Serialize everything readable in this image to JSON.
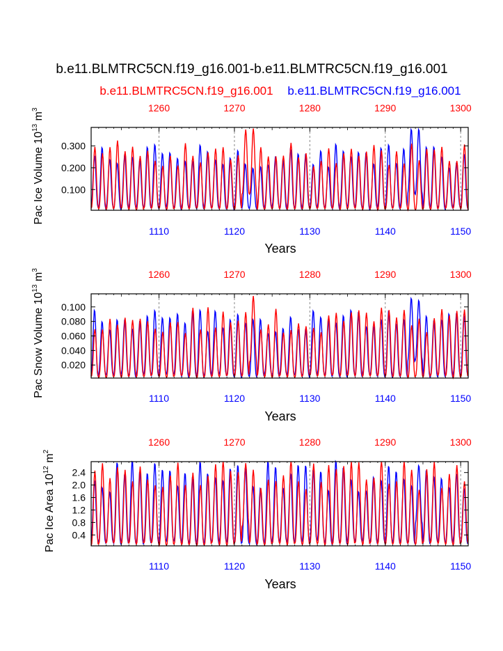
{
  "figure": {
    "title": "b.e11.BLMTRC5CN.f19_g16.001-b.e11.BLMTRC5CN.f19_g16.001",
    "case_red": "b.e11.BLMTRC5CN.f19_g16.001",
    "case_blue": "b.e11.BLMTRC5CN.f19_g16.001"
  },
  "colors": {
    "red": "#ff0000",
    "blue": "#0000ff",
    "axis": "#000000",
    "grid": "#888888"
  },
  "chart_data": [
    {
      "type": "line",
      "ylabel_main": "Pac Ice Volume 10",
      "ylabel_sup": "13",
      "ylabel_unit": " m",
      "ylabel_unit_sup": "3",
      "xlabel": "Years",
      "xlim_bottom": [
        1101,
        1151
      ],
      "xlim_top": [
        1251,
        1301
      ],
      "ylim": [
        0.005,
        0.385
      ],
      "yticks": [
        0.1,
        0.2,
        0.3
      ],
      "ytick_labels": [
        "0.100",
        "0.200",
        "0.300"
      ],
      "xticks_bottom": [
        "1110",
        "1120",
        "1130",
        "1140",
        "1150"
      ],
      "xticks_top": [
        "1260",
        "1270",
        "1280",
        "1290",
        "1300"
      ],
      "series": [
        {
          "name": "b.e11.BLMTRC5CN.f19_g16.001 (years 1101-1151)",
          "color": "blue",
          "annual_min": 0.015,
          "annual_max_mean": 0.27,
          "peak_highlights": [
            {
              "year": 1143,
              "max": 0.38
            },
            {
              "year": 1144,
              "max": 0.38
            }
          ]
        },
        {
          "name": "b.e11.BLMTRC5CN.f19_g16.001 (years 1251-1301)",
          "color": "red",
          "annual_min": 0.01,
          "annual_max_mean": 0.28,
          "peak_highlights": [
            {
              "year": 1271,
              "max": 0.375
            },
            {
              "year": 1272,
              "max": 0.38
            }
          ]
        }
      ]
    },
    {
      "type": "line",
      "ylabel_main": "Pac Snow Volume 10",
      "ylabel_sup": "13",
      "ylabel_unit": " m",
      "ylabel_unit_sup": "3",
      "xlabel": "Years",
      "xlim_bottom": [
        1101,
        1151
      ],
      "xlim_top": [
        1251,
        1301
      ],
      "ylim": [
        0.002,
        0.118
      ],
      "yticks": [
        0.02,
        0.04,
        0.06,
        0.08,
        0.1
      ],
      "ytick_labels": [
        "0.020",
        "0.040",
        "0.060",
        "0.080",
        "0.100"
      ],
      "xticks_bottom": [
        "1110",
        "1120",
        "1130",
        "1140",
        "1150"
      ],
      "xticks_top": [
        "1260",
        "1270",
        "1280",
        "1290",
        "1300"
      ],
      "series": [
        {
          "name": "b.e11.BLMTRC5CN.f19_g16.001 (years 1101-1151)",
          "color": "blue",
          "annual_min": 0.005,
          "annual_max_mean": 0.085,
          "peak_highlights": [
            {
              "year": 1143,
              "max": 0.113
            },
            {
              "year": 1144,
              "max": 0.11
            }
          ]
        },
        {
          "name": "b.e11.BLMTRC5CN.f19_g16.001 (years 1251-1301)",
          "color": "red",
          "annual_min": 0.004,
          "annual_max_mean": 0.086,
          "peak_highlights": [
            {
              "year": 1272,
              "max": 0.115
            }
          ]
        }
      ]
    },
    {
      "type": "line",
      "ylabel_main": "Pac Ice Area 10",
      "ylabel_sup": "12",
      "ylabel_unit": " m",
      "ylabel_unit_sup": "2",
      "xlabel": "Years",
      "xlim_bottom": [
        1101,
        1151
      ],
      "xlim_top": [
        1251,
        1301
      ],
      "ylim": [
        0.05,
        2.75
      ],
      "yticks": [
        0.4,
        0.8,
        1.2,
        1.6,
        2.0,
        2.4
      ],
      "ytick_labels": [
        "0.4",
        "0.8",
        "1.2",
        "1.6",
        "2.0",
        "2.4"
      ],
      "xticks_bottom": [
        "1110",
        "1120",
        "1130",
        "1140",
        "1150"
      ],
      "xticks_top": [
        "1260",
        "1270",
        "1280",
        "1290",
        "1300"
      ],
      "series": [
        {
          "name": "b.e11.BLMTRC5CN.f19_g16.001 (years 1101-1151)",
          "color": "blue",
          "annual_min": 0.15,
          "annual_max_mean": 2.45,
          "peak_highlights": [
            {
              "year": 1144,
              "max": 2.65
            }
          ]
        },
        {
          "name": "b.e11.BLMTRC5CN.f19_g16.001 (years 1251-1301)",
          "color": "red",
          "annual_min": 0.1,
          "annual_max_mean": 2.5,
          "peak_highlights": [
            {
              "year": 1271,
              "max": 2.7
            }
          ]
        }
      ]
    }
  ]
}
